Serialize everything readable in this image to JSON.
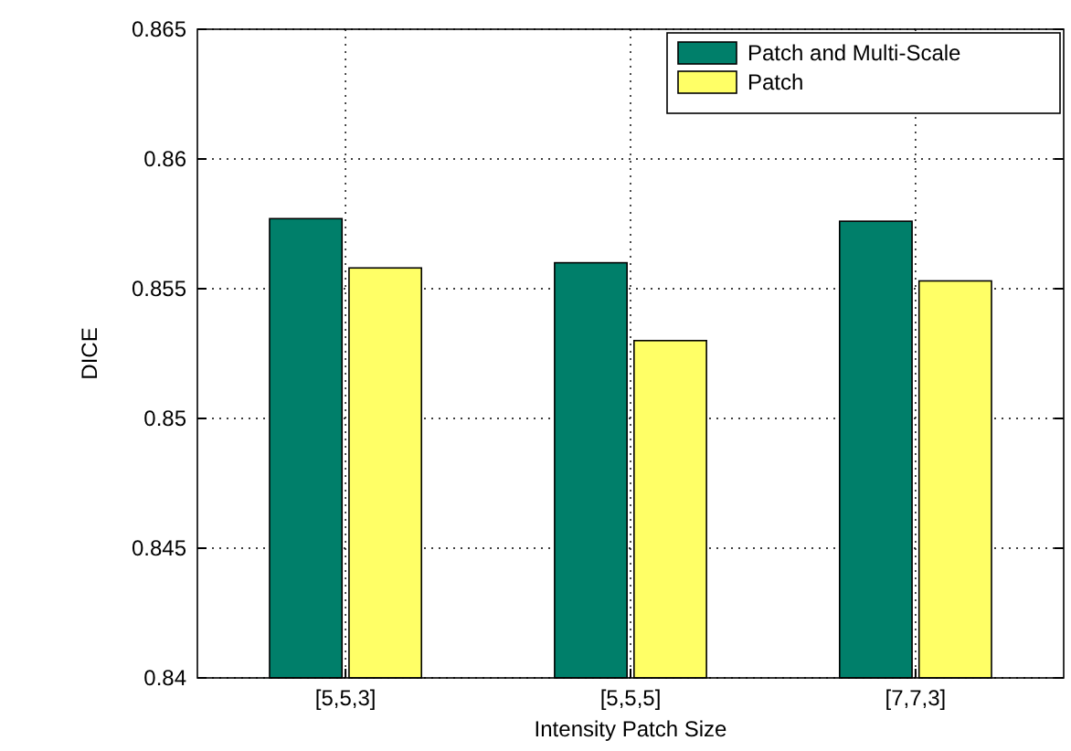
{
  "chart_data": {
    "type": "bar",
    "xlabel": "Intensity Patch Size",
    "ylabel": "DICE",
    "categories": [
      "[5,5,3]",
      "[5,5,5]",
      "[7,7,3]"
    ],
    "series": [
      {
        "name": "Patch and Multi-Scale",
        "color": "#007f6a",
        "values": [
          0.8577,
          0.856,
          0.8576
        ]
      },
      {
        "name": "Patch",
        "color": "#ffff66",
        "values": [
          0.8558,
          0.853,
          0.8553
        ]
      }
    ],
    "ylim": [
      0.84,
      0.865
    ],
    "yticks": [
      0.84,
      0.845,
      0.85,
      0.855,
      0.86,
      0.865
    ],
    "grid": true,
    "legend": "top right"
  }
}
